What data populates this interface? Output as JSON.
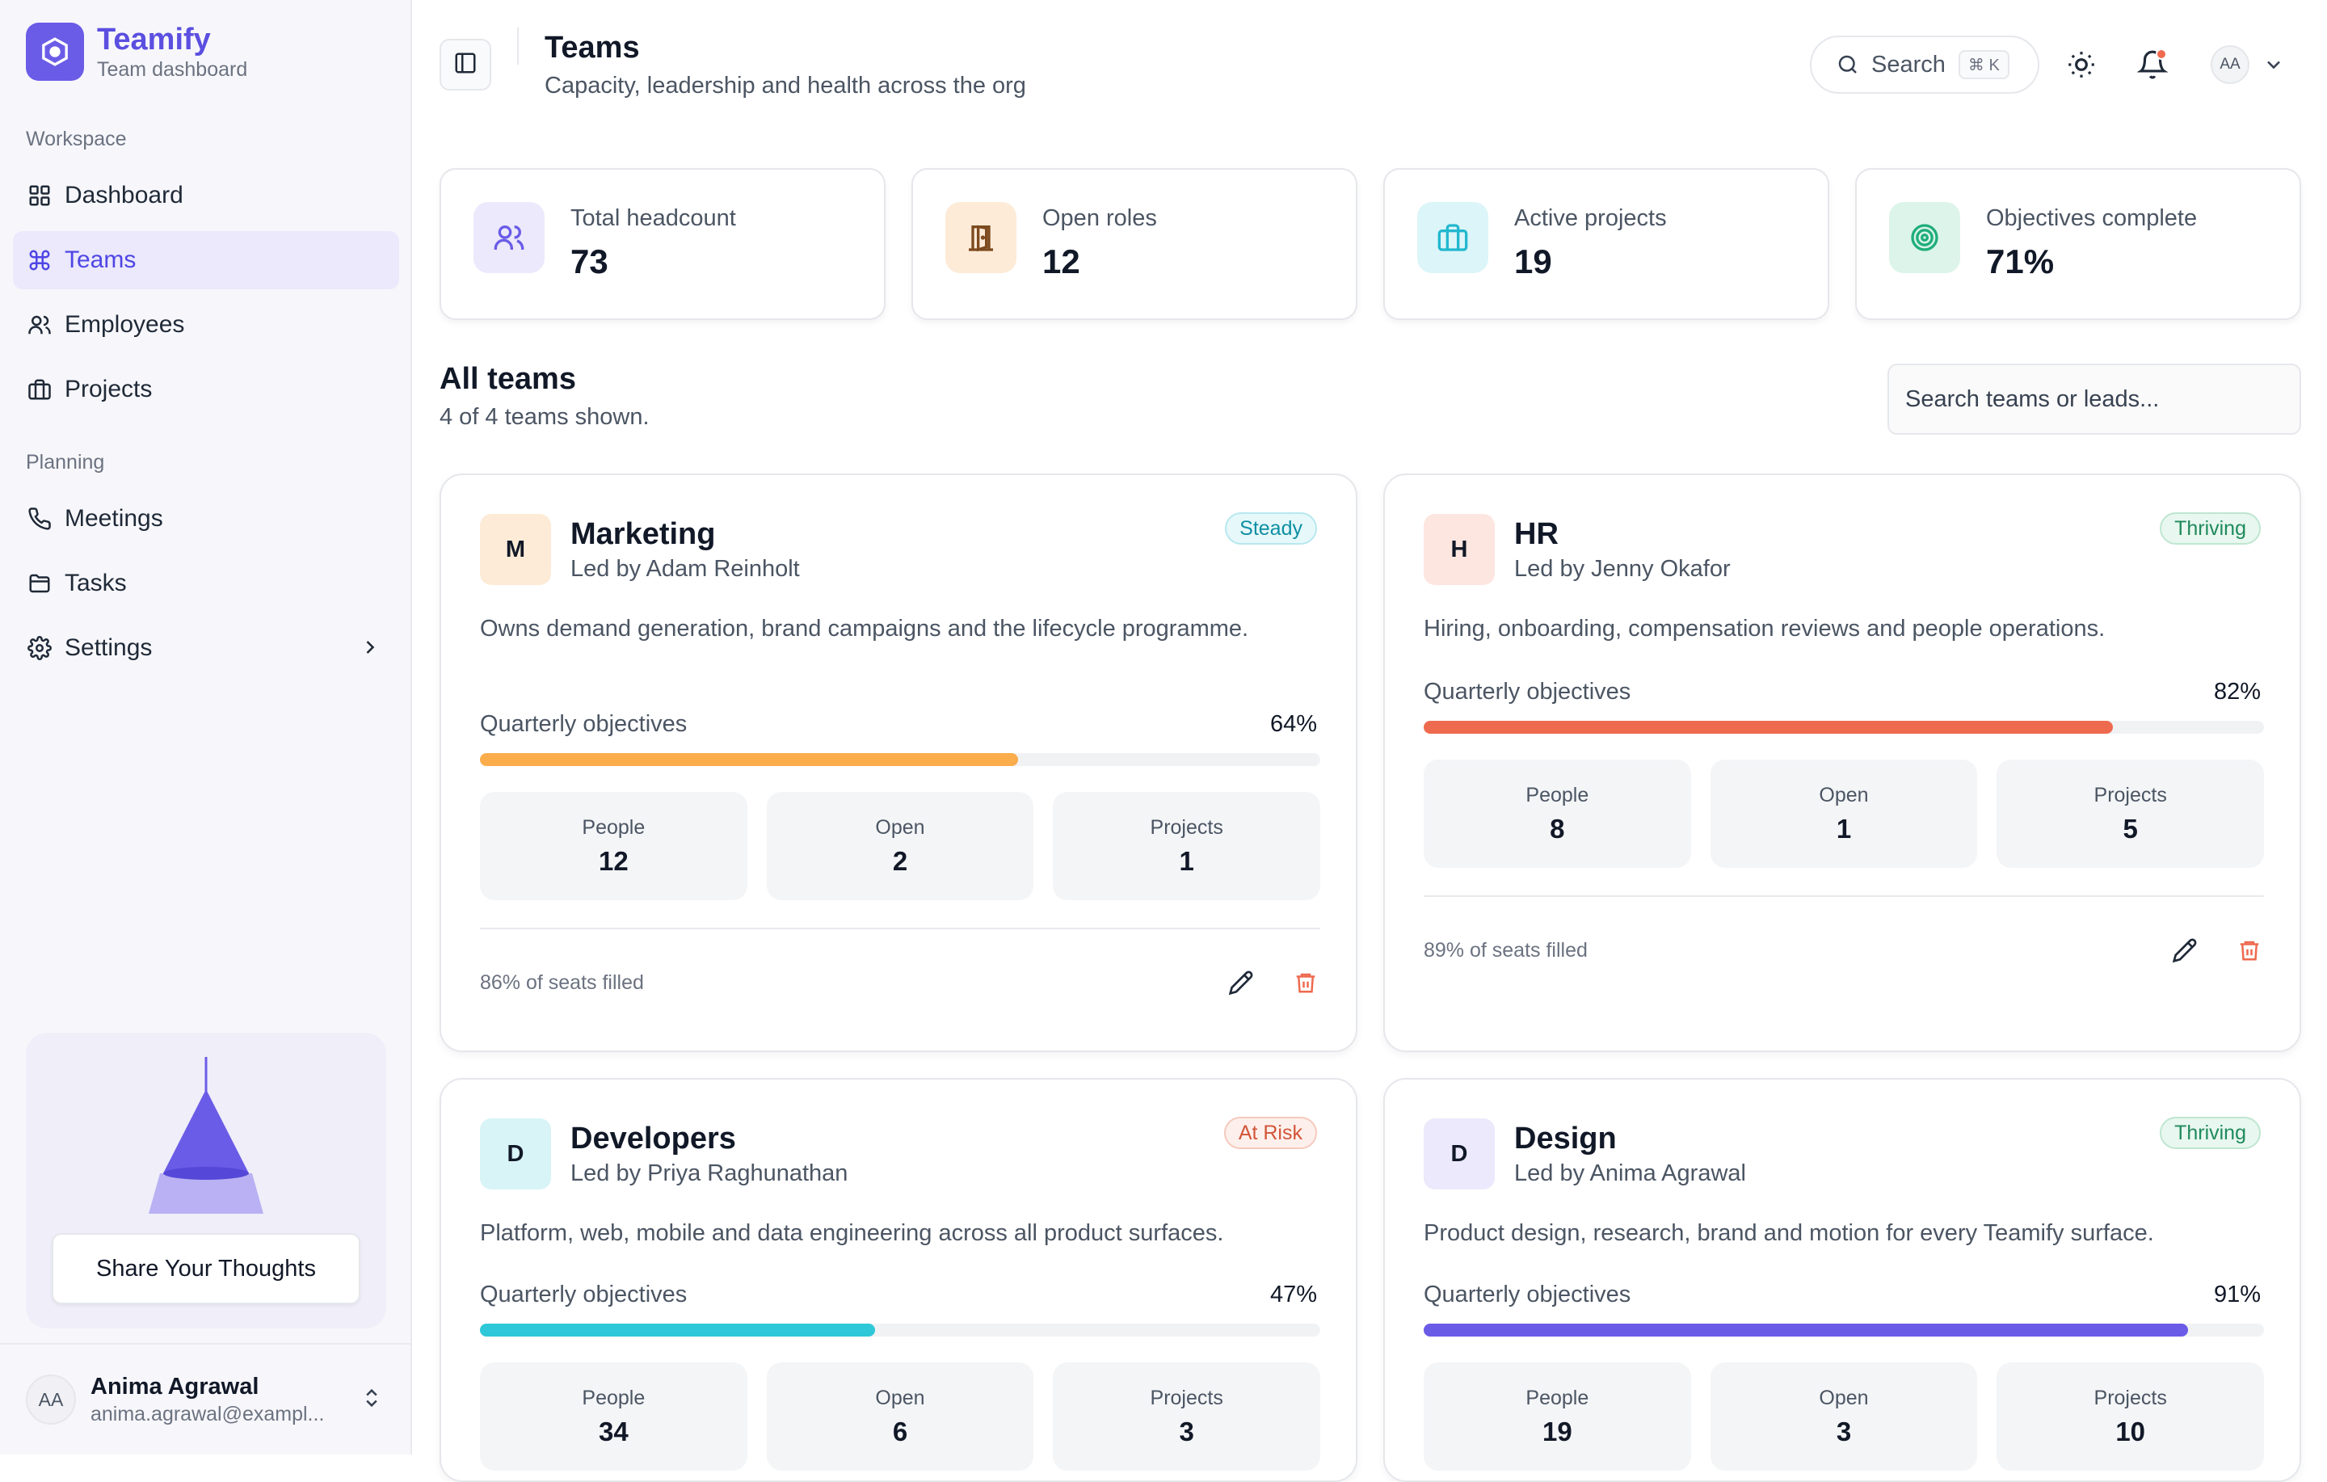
{
  "brand": {
    "name": "Teamify",
    "subtitle": "Team dashboard"
  },
  "sidebar": {
    "groups": [
      {
        "title": "Workspace"
      },
      {
        "title": "Planning"
      }
    ],
    "items": [
      {
        "label": "Dashboard",
        "icon": "grid-icon"
      },
      {
        "label": "Teams",
        "icon": "command-icon",
        "active": true
      },
      {
        "label": "Employees",
        "icon": "users-icon"
      },
      {
        "label": "Projects",
        "icon": "briefcase-icon"
      },
      {
        "label": "Meetings",
        "icon": "phone-icon"
      },
      {
        "label": "Tasks",
        "icon": "folder-icon"
      },
      {
        "label": "Settings",
        "icon": "gear-icon"
      }
    ],
    "promo": {
      "button_label": "Share Your Thoughts"
    },
    "user": {
      "initials": "AA",
      "name": "Anima Agrawal",
      "email": "anima.agrawal@exampl..."
    }
  },
  "header": {
    "title": "Teams",
    "subtitle": "Capacity, leadership and health across the org",
    "search_label": "Search",
    "search_shortcut": "⌘ K",
    "avatar_initials": "AA"
  },
  "stats": [
    {
      "label": "Total headcount",
      "value": "73",
      "icon": "users-icon",
      "bg": "#ebe9fb",
      "color": "#6b5ce7"
    },
    {
      "label": "Open roles",
      "value": "12",
      "icon": "door-icon",
      "bg": "#fdebd8",
      "color": "#7c4a1e"
    },
    {
      "label": "Active projects",
      "value": "19",
      "icon": "briefcase-icon",
      "bg": "#dcf5f8",
      "color": "#22b8cf"
    },
    {
      "label": "Objectives complete",
      "value": "71%",
      "icon": "target-icon",
      "bg": "#dcf4ea",
      "color": "#1fae7a"
    }
  ],
  "section": {
    "title": "All teams",
    "subtitle": "4 of 4 teams shown.",
    "search_placeholder": "Search teams or leads..."
  },
  "labels": {
    "objectives": "Quarterly objectives",
    "people": "People",
    "open": "Open",
    "projects": "Projects"
  },
  "teams": [
    {
      "initial": "M",
      "name": "Marketing",
      "lead": "Led by Adam Reinholt",
      "status": "Steady",
      "description": "Owns demand generation, brand campaigns and the lifecycle programme.",
      "objectives_pct": "64%",
      "progress": 0.64,
      "bar_color": "#fbac4b",
      "avatar_bg": "#fdebd8",
      "people": "12",
      "open": "2",
      "projects": "1",
      "seats": "86% of seats filled"
    },
    {
      "initial": "H",
      "name": "HR",
      "lead": "Led by Jenny Okafor",
      "status": "Thriving",
      "description": "Hiring, onboarding, compensation reviews and people operations.",
      "objectives_pct": "82%",
      "progress": 0.82,
      "bar_color": "#ee6a4f",
      "avatar_bg": "#fde6e0",
      "people": "8",
      "open": "1",
      "projects": "5",
      "seats": "89% of seats filled"
    },
    {
      "initial": "D",
      "name": "Developers",
      "lead": "Led by Priya Raghunathan",
      "status": "At Risk",
      "description": "Platform, web, mobile and data engineering across all product surfaces.",
      "objectives_pct": "47%",
      "progress": 0.47,
      "bar_color": "#2ec8d8",
      "avatar_bg": "#d8f4f7",
      "people": "34",
      "open": "6",
      "projects": "3",
      "seats": ""
    },
    {
      "initial": "D",
      "name": "Design",
      "lead": "Led by Anima Agrawal",
      "status": "Thriving",
      "description": "Product design, research, brand and motion for every Teamify surface.",
      "objectives_pct": "91%",
      "progress": 0.91,
      "bar_color": "#6b5ce7",
      "avatar_bg": "#ebe9fb",
      "people": "19",
      "open": "3",
      "projects": "10",
      "seats": ""
    }
  ],
  "colors": {
    "accent": "#6b5ce7",
    "steady": "#0e8fa3",
    "thriving": "#1f8a5c",
    "at_risk": "#d2553a",
    "danger": "#ee6a4f"
  }
}
